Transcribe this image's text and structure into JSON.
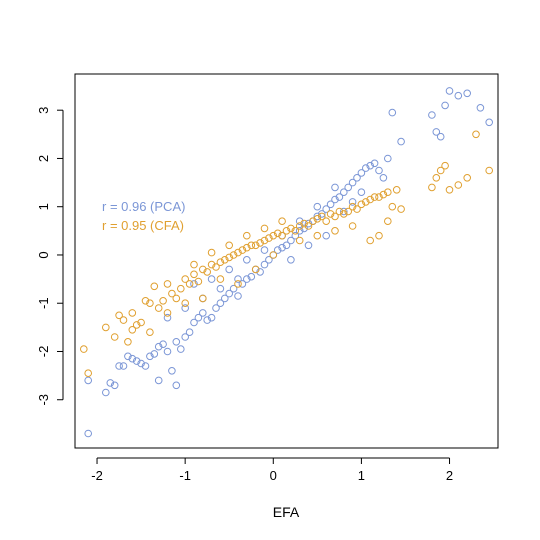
{
  "chart_data": {
    "type": "scatter",
    "title": "",
    "xlabel": "EFA",
    "ylabel": "",
    "xlim": [
      -2.25,
      2.55
    ],
    "ylim": [
      -4.0,
      3.75
    ],
    "x_ticks": [
      -2,
      -1,
      0,
      1,
      2
    ],
    "y_ticks": [
      -3,
      -2,
      -1,
      0,
      1,
      2,
      3
    ],
    "x_tick_labels": [
      "-2",
      "-1",
      "0",
      "1",
      "2"
    ],
    "y_tick_labels": [
      "-3",
      "-2",
      "-1",
      "0",
      "1",
      "2",
      "3"
    ],
    "grid": false,
    "legend_position": "left",
    "annotations": [
      {
        "text": "r = 0.96 (PCA)",
        "series": "PCA"
      },
      {
        "text": "r = 0.95 (CFA)",
        "series": "CFA"
      }
    ],
    "series": [
      {
        "name": "PCA",
        "color": "#7b96d6",
        "marker": "open-circle",
        "points": [
          [
            -2.1,
            -3.7
          ],
          [
            -2.1,
            -2.6
          ],
          [
            -1.9,
            -2.85
          ],
          [
            -1.85,
            -2.65
          ],
          [
            -1.8,
            -2.7
          ],
          [
            -1.75,
            -2.3
          ],
          [
            -1.7,
            -2.3
          ],
          [
            -1.65,
            -2.1
          ],
          [
            -1.6,
            -2.15
          ],
          [
            -1.55,
            -2.2
          ],
          [
            -1.5,
            -2.25
          ],
          [
            -1.45,
            -2.3
          ],
          [
            -1.4,
            -2.1
          ],
          [
            -1.35,
            -2.05
          ],
          [
            -1.3,
            -2.6
          ],
          [
            -1.3,
            -1.9
          ],
          [
            -1.25,
            -1.85
          ],
          [
            -1.2,
            -2.0
          ],
          [
            -1.15,
            -2.4
          ],
          [
            -1.1,
            -2.7
          ],
          [
            -1.1,
            -1.8
          ],
          [
            -1.05,
            -1.95
          ],
          [
            -1.0,
            -1.7
          ],
          [
            -0.95,
            -1.6
          ],
          [
            -0.9,
            -1.4
          ],
          [
            -0.85,
            -1.3
          ],
          [
            -0.8,
            -1.2
          ],
          [
            -0.75,
            -1.35
          ],
          [
            -0.7,
            -1.3
          ],
          [
            -0.65,
            -1.1
          ],
          [
            -0.6,
            -1.0
          ],
          [
            -0.55,
            -0.9
          ],
          [
            -0.5,
            -0.8
          ],
          [
            -0.45,
            -0.7
          ],
          [
            -0.4,
            -0.85
          ],
          [
            -0.35,
            -0.6
          ],
          [
            -0.3,
            -0.5
          ],
          [
            -0.25,
            -0.45
          ],
          [
            -0.2,
            -0.3
          ],
          [
            -0.15,
            -0.35
          ],
          [
            -0.1,
            -0.2
          ],
          [
            -0.05,
            -0.1
          ],
          [
            0.0,
            0.0
          ],
          [
            0.05,
            0.1
          ],
          [
            0.1,
            0.15
          ],
          [
            0.15,
            0.2
          ],
          [
            0.2,
            0.3
          ],
          [
            0.25,
            0.4
          ],
          [
            0.3,
            0.5
          ],
          [
            0.35,
            0.55
          ],
          [
            0.4,
            0.65
          ],
          [
            0.45,
            0.7
          ],
          [
            0.5,
            0.8
          ],
          [
            0.55,
            0.85
          ],
          [
            0.6,
            0.95
          ],
          [
            0.65,
            1.05
          ],
          [
            0.7,
            1.15
          ],
          [
            0.75,
            1.2
          ],
          [
            0.8,
            1.3
          ],
          [
            0.85,
            1.4
          ],
          [
            0.9,
            1.5
          ],
          [
            0.95,
            1.6
          ],
          [
            1.0,
            1.7
          ],
          [
            1.05,
            1.8
          ],
          [
            1.1,
            1.85
          ],
          [
            1.15,
            1.9
          ],
          [
            1.2,
            1.75
          ],
          [
            1.25,
            1.6
          ],
          [
            1.3,
            2.0
          ],
          [
            1.35,
            2.95
          ],
          [
            1.45,
            2.35
          ],
          [
            1.8,
            2.9
          ],
          [
            1.85,
            2.55
          ],
          [
            1.9,
            2.45
          ],
          [
            1.95,
            3.1
          ],
          [
            2.0,
            3.4
          ],
          [
            2.1,
            3.3
          ],
          [
            2.2,
            3.35
          ],
          [
            2.35,
            3.05
          ],
          [
            2.45,
            2.75
          ],
          [
            -0.9,
            -0.6
          ],
          [
            -0.7,
            -0.5
          ],
          [
            -0.5,
            -0.3
          ],
          [
            -0.3,
            -0.1
          ],
          [
            -0.1,
            0.1
          ],
          [
            0.1,
            0.4
          ],
          [
            0.3,
            0.7
          ],
          [
            0.5,
            1.0
          ],
          [
            0.7,
            1.4
          ],
          [
            0.9,
            1.1
          ],
          [
            -1.2,
            -1.3
          ],
          [
            -1.0,
            -1.1
          ],
          [
            -0.8,
            -0.9
          ],
          [
            -0.6,
            -0.7
          ],
          [
            -0.4,
            -0.5
          ],
          [
            0.2,
            -0.1
          ],
          [
            0.4,
            0.2
          ],
          [
            0.6,
            0.4
          ],
          [
            0.8,
            0.9
          ],
          [
            1.0,
            1.3
          ]
        ]
      },
      {
        "name": "CFA",
        "color": "#e0a030",
        "marker": "open-circle",
        "points": [
          [
            -2.15,
            -1.95
          ],
          [
            -2.1,
            -2.45
          ],
          [
            -1.9,
            -1.5
          ],
          [
            -1.75,
            -1.25
          ],
          [
            -1.7,
            -1.35
          ],
          [
            -1.65,
            -1.8
          ],
          [
            -1.6,
            -1.55
          ],
          [
            -1.55,
            -1.45
          ],
          [
            -1.5,
            -1.4
          ],
          [
            -1.45,
            -0.95
          ],
          [
            -1.4,
            -1.0
          ],
          [
            -1.35,
            -0.65
          ],
          [
            -1.3,
            -1.1
          ],
          [
            -1.25,
            -0.95
          ],
          [
            -1.2,
            -1.2
          ],
          [
            -1.15,
            -0.8
          ],
          [
            -1.1,
            -0.9
          ],
          [
            -1.05,
            -0.7
          ],
          [
            -1.0,
            -0.5
          ],
          [
            -0.95,
            -0.6
          ],
          [
            -0.9,
            -0.4
          ],
          [
            -0.85,
            -0.55
          ],
          [
            -0.8,
            -0.3
          ],
          [
            -0.75,
            -0.35
          ],
          [
            -0.7,
            -0.2
          ],
          [
            -0.65,
            -0.25
          ],
          [
            -0.6,
            -0.15
          ],
          [
            -0.55,
            -0.1
          ],
          [
            -0.5,
            -0.05
          ],
          [
            -0.45,
            0.0
          ],
          [
            -0.4,
            0.05
          ],
          [
            -0.35,
            0.1
          ],
          [
            -0.3,
            0.15
          ],
          [
            -0.25,
            0.2
          ],
          [
            -0.2,
            0.2
          ],
          [
            -0.15,
            0.25
          ],
          [
            -0.1,
            0.3
          ],
          [
            -0.05,
            0.35
          ],
          [
            0.0,
            0.4
          ],
          [
            0.05,
            0.45
          ],
          [
            0.1,
            0.4
          ],
          [
            0.15,
            0.5
          ],
          [
            0.2,
            0.55
          ],
          [
            0.25,
            0.5
          ],
          [
            0.3,
            0.6
          ],
          [
            0.35,
            0.65
          ],
          [
            0.4,
            0.6
          ],
          [
            0.45,
            0.7
          ],
          [
            0.5,
            0.75
          ],
          [
            0.55,
            0.8
          ],
          [
            0.6,
            0.7
          ],
          [
            0.65,
            0.85
          ],
          [
            0.7,
            0.8
          ],
          [
            0.75,
            0.9
          ],
          [
            0.8,
            0.85
          ],
          [
            0.85,
            0.9
          ],
          [
            0.9,
            1.0
          ],
          [
            0.95,
            0.95
          ],
          [
            1.0,
            1.05
          ],
          [
            1.05,
            1.1
          ],
          [
            1.1,
            1.15
          ],
          [
            1.15,
            1.2
          ],
          [
            1.2,
            1.2
          ],
          [
            1.25,
            1.25
          ],
          [
            1.3,
            1.3
          ],
          [
            1.35,
            1.0
          ],
          [
            1.4,
            1.35
          ],
          [
            1.45,
            0.95
          ],
          [
            1.8,
            1.4
          ],
          [
            1.85,
            1.6
          ],
          [
            1.9,
            1.75
          ],
          [
            1.95,
            1.85
          ],
          [
            2.0,
            1.35
          ],
          [
            2.1,
            1.45
          ],
          [
            2.2,
            1.6
          ],
          [
            2.3,
            2.5
          ],
          [
            2.45,
            1.75
          ],
          [
            -0.9,
            -0.2
          ],
          [
            -0.7,
            0.05
          ],
          [
            -0.5,
            0.2
          ],
          [
            -0.3,
            0.4
          ],
          [
            -0.1,
            0.55
          ],
          [
            0.1,
            0.7
          ],
          [
            0.3,
            0.3
          ],
          [
            0.5,
            0.4
          ],
          [
            0.7,
            0.5
          ],
          [
            0.9,
            0.6
          ],
          [
            1.1,
            0.3
          ],
          [
            1.2,
            0.4
          ],
          [
            1.3,
            0.7
          ],
          [
            -1.8,
            -1.7
          ],
          [
            -1.6,
            -1.2
          ],
          [
            -1.4,
            -1.6
          ],
          [
            -1.2,
            -0.6
          ],
          [
            -1.0,
            -1.0
          ],
          [
            -0.8,
            -0.9
          ],
          [
            -0.6,
            -0.5
          ],
          [
            -0.4,
            -0.6
          ],
          [
            -0.2,
            -0.3
          ],
          [
            0.0,
            0.0
          ]
        ]
      }
    ]
  }
}
